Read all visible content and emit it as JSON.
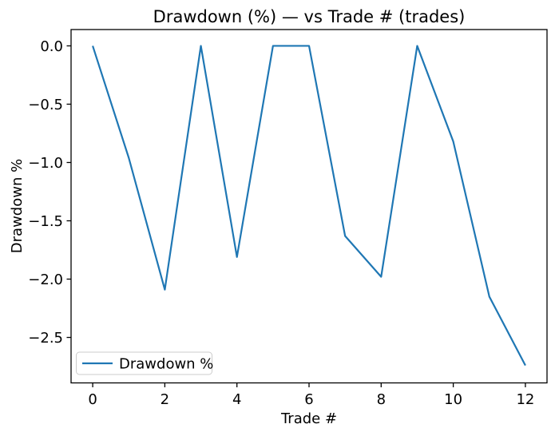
{
  "chart_data": {
    "type": "line",
    "title": "Drawdown (%) — vs Trade # (trades)",
    "xlabel": "Trade #",
    "ylabel": "Drawdown %",
    "x": [
      0,
      1,
      2,
      3,
      4,
      5,
      6,
      7,
      8,
      9,
      10,
      11,
      12
    ],
    "series": [
      {
        "name": "Drawdown %",
        "color": "#1f77b4",
        "values": [
          0.0,
          -0.96,
          -2.09,
          0.0,
          -1.81,
          0.0,
          0.0,
          -1.63,
          -1.98,
          0.0,
          -0.82,
          -2.15,
          -2.74
        ]
      }
    ],
    "xlim": [
      -0.6,
      12.6
    ],
    "ylim": [
      -2.89,
      0.14
    ],
    "xticks": {
      "values": [
        0,
        2,
        4,
        6,
        8,
        10,
        12
      ],
      "labels": [
        "0",
        "2",
        "4",
        "6",
        "8",
        "10",
        "12"
      ]
    },
    "yticks": {
      "values": [
        0.0,
        -0.5,
        -1.0,
        -1.5,
        -2.0,
        -2.5
      ],
      "labels": [
        "0.0",
        "−0.5",
        "−1.0",
        "−1.5",
        "−2.0",
        "−2.5"
      ]
    },
    "grid": false,
    "legend": {
      "label": "Drawdown %",
      "position": "lower left"
    },
    "colors": {
      "line": "#1f77b4",
      "spine": "#000000",
      "legend_border": "#cccccc",
      "background": "#ffffff"
    }
  }
}
